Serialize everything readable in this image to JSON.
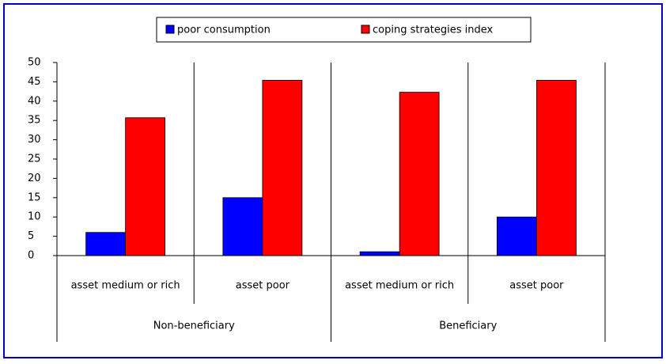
{
  "chart_data": {
    "type": "bar",
    "categories": [
      "asset medium or rich",
      "asset poor",
      "asset medium or rich",
      "asset poor"
    ],
    "groups": [
      "Non-beneficiary",
      "Beneficiary"
    ],
    "series": [
      {
        "name": "poor consumption",
        "color": "#0000ff",
        "values": [
          6,
          15,
          1,
          10
        ]
      },
      {
        "name": "coping strategies index",
        "color": "#ff0000",
        "values": [
          35.7,
          45.4,
          42.3,
          45.4
        ]
      }
    ],
    "ylim": [
      0,
      50
    ],
    "yticks": [
      0,
      5,
      10,
      15,
      20,
      25,
      30,
      35,
      40,
      45,
      50
    ],
    "grid": false,
    "legend": "top"
  }
}
